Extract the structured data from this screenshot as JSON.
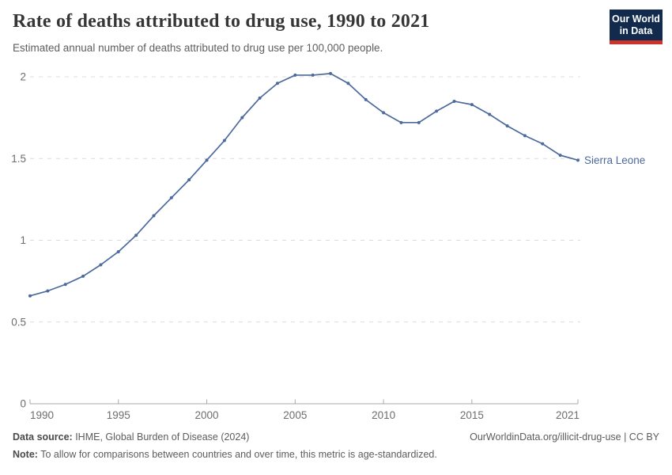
{
  "header": {
    "title": "Rate of deaths attributed to drug use, 1990 to 2021",
    "subtitle": "Estimated annual number of deaths attributed to drug use per 100,000 people.",
    "logo_line1": "Our World",
    "logo_line2": "in Data"
  },
  "chart_data": {
    "type": "line",
    "title": "Rate of deaths attributed to drug use, 1990 to 2021",
    "xlabel": "",
    "ylabel": "",
    "x": [
      1990,
      1991,
      1992,
      1993,
      1994,
      1995,
      1996,
      1997,
      1998,
      1999,
      2000,
      2001,
      2002,
      2003,
      2004,
      2005,
      2006,
      2007,
      2008,
      2009,
      2010,
      2011,
      2012,
      2013,
      2014,
      2015,
      2016,
      2017,
      2018,
      2019,
      2020,
      2021
    ],
    "series": [
      {
        "name": "Sierra Leone",
        "values": [
          0.66,
          0.69,
          0.73,
          0.78,
          0.85,
          0.93,
          1.03,
          1.15,
          1.26,
          1.37,
          1.49,
          1.61,
          1.75,
          1.87,
          1.96,
          2.01,
          2.01,
          2.02,
          1.96,
          1.86,
          1.78,
          1.72,
          1.72,
          1.79,
          1.85,
          1.83,
          1.77,
          1.7,
          1.64,
          1.59,
          1.52,
          1.49
        ]
      }
    ],
    "xticks": [
      1990,
      1995,
      2000,
      2005,
      2010,
      2015,
      2021
    ],
    "yticks": [
      0,
      0.5,
      1,
      1.5,
      2
    ],
    "xlim": [
      1990,
      2021
    ],
    "ylim": [
      0,
      2.1
    ],
    "grid": "horizontal-dashed",
    "legend": "end-of-line-label",
    "end_label": "Sierra Leone"
  },
  "footer": {
    "source_label": "Data source:",
    "source_text": " IHME, Global Burden of Disease (2024)",
    "right_text": "OurWorldinData.org/illicit-drug-use | CC BY",
    "note_label": "Note:",
    "note_text": " To allow for comparisons between countries and over time, this metric is age-standardized."
  },
  "colors": {
    "line": "#4c6a9c",
    "grid": "#dcdcdc",
    "axis": "#a8a8a8",
    "tick_label": "#6d6d6d",
    "title_text": "#363636",
    "logo_bg": "#122b4d",
    "logo_underline": "#cb342c"
  }
}
